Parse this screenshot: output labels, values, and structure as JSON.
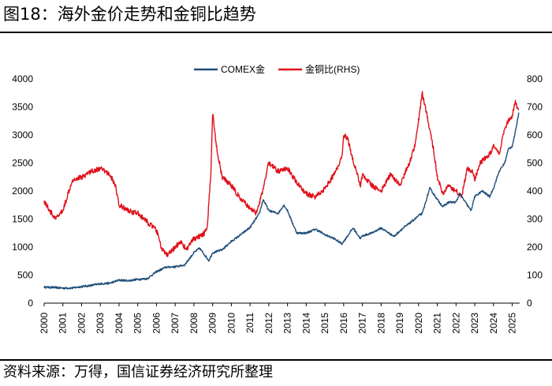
{
  "figure": {
    "title": "图18：海外金价走势和金铜比趋势",
    "source": "资料来源：万得，国信证券经济研究所整理"
  },
  "colors": {
    "gold": "#1f4e79",
    "ratio": "#e0101a"
  },
  "chart_data": {
    "type": "line",
    "legend_placement": "top-center",
    "grid": false,
    "x_ticks": [
      "2000",
      "2001",
      "2002",
      "2003",
      "2004",
      "2005",
      "2006",
      "2007",
      "2008",
      "2009",
      "2010",
      "2011",
      "2012",
      "2013",
      "2014",
      "2015",
      "2016",
      "2017",
      "2018",
      "2019",
      "2020",
      "2021",
      "2022",
      "2023",
      "2024",
      "2025"
    ],
    "y_left": {
      "min": 0,
      "max": 4000,
      "ticks": [
        "0",
        "500",
        "1000",
        "1500",
        "2000",
        "2500",
        "3000",
        "3500",
        "4000"
      ]
    },
    "y_right": {
      "min": 0,
      "max": 800,
      "ticks": [
        "0",
        "100",
        "200",
        "300",
        "400",
        "500",
        "600",
        "700",
        "800"
      ]
    },
    "series": [
      {
        "name": "COMEX金",
        "axis": "left",
        "color": "#1f4e79",
        "points": [
          [
            2000.0,
            285
          ],
          [
            2000.5,
            280
          ],
          [
            2001.0,
            268
          ],
          [
            2001.5,
            270
          ],
          [
            2002.0,
            295
          ],
          [
            2002.5,
            315
          ],
          [
            2003.0,
            345
          ],
          [
            2003.5,
            355
          ],
          [
            2004.0,
            410
          ],
          [
            2004.5,
            400
          ],
          [
            2005.0,
            425
          ],
          [
            2005.5,
            435
          ],
          [
            2006.0,
            560
          ],
          [
            2006.5,
            640
          ],
          [
            2007.0,
            650
          ],
          [
            2007.5,
            680
          ],
          [
            2008.0,
            900
          ],
          [
            2008.3,
            980
          ],
          [
            2008.8,
            760
          ],
          [
            2009.0,
            900
          ],
          [
            2009.5,
            950
          ],
          [
            2010.0,
            1100
          ],
          [
            2010.5,
            1220
          ],
          [
            2011.0,
            1350
          ],
          [
            2011.5,
            1600
          ],
          [
            2011.7,
            1850
          ],
          [
            2012.0,
            1650
          ],
          [
            2012.5,
            1600
          ],
          [
            2012.8,
            1750
          ],
          [
            2013.0,
            1650
          ],
          [
            2013.3,
            1400
          ],
          [
            2013.5,
            1250
          ],
          [
            2014.0,
            1250
          ],
          [
            2014.5,
            1320
          ],
          [
            2015.0,
            1220
          ],
          [
            2015.5,
            1150
          ],
          [
            2015.9,
            1060
          ],
          [
            2016.0,
            1100
          ],
          [
            2016.5,
            1340
          ],
          [
            2016.9,
            1150
          ],
          [
            2017.0,
            1200
          ],
          [
            2017.5,
            1250
          ],
          [
            2018.0,
            1340
          ],
          [
            2018.7,
            1190
          ],
          [
            2019.0,
            1290
          ],
          [
            2019.5,
            1420
          ],
          [
            2019.8,
            1500
          ],
          [
            2020.0,
            1560
          ],
          [
            2020.2,
            1600
          ],
          [
            2020.6,
            2050
          ],
          [
            2021.0,
            1850
          ],
          [
            2021.3,
            1720
          ],
          [
            2021.6,
            1800
          ],
          [
            2022.0,
            1800
          ],
          [
            2022.2,
            1950
          ],
          [
            2022.8,
            1650
          ],
          [
            2023.0,
            1900
          ],
          [
            2023.4,
            2000
          ],
          [
            2023.8,
            1900
          ],
          [
            2024.0,
            2050
          ],
          [
            2024.3,
            2350
          ],
          [
            2024.6,
            2500
          ],
          [
            2024.8,
            2750
          ],
          [
            2025.0,
            2800
          ],
          [
            2025.2,
            3100
          ],
          [
            2025.35,
            3400
          ]
        ]
      },
      {
        "name": "金铜比(RHS)",
        "axis": "right",
        "color": "#e0101a",
        "points": [
          [
            2000.0,
            365
          ],
          [
            2000.3,
            330
          ],
          [
            2000.6,
            300
          ],
          [
            2001.0,
            330
          ],
          [
            2001.5,
            440
          ],
          [
            2002.0,
            450
          ],
          [
            2002.5,
            470
          ],
          [
            2003.0,
            480
          ],
          [
            2003.5,
            460
          ],
          [
            2003.8,
            420
          ],
          [
            2004.0,
            350
          ],
          [
            2004.5,
            330
          ],
          [
            2005.0,
            320
          ],
          [
            2005.5,
            290
          ],
          [
            2006.0,
            260
          ],
          [
            2006.3,
            190
          ],
          [
            2006.6,
            170
          ],
          [
            2007.0,
            200
          ],
          [
            2007.3,
            220
          ],
          [
            2007.6,
            190
          ],
          [
            2008.0,
            230
          ],
          [
            2008.4,
            240
          ],
          [
            2008.7,
            260
          ],
          [
            2008.9,
            460
          ],
          [
            2009.0,
            680
          ],
          [
            2009.2,
            560
          ],
          [
            2009.5,
            450
          ],
          [
            2010.0,
            420
          ],
          [
            2010.5,
            370
          ],
          [
            2011.0,
            340
          ],
          [
            2011.3,
            320
          ],
          [
            2011.6,
            380
          ],
          [
            2012.0,
            500
          ],
          [
            2012.5,
            470
          ],
          [
            2013.0,
            480
          ],
          [
            2013.5,
            430
          ],
          [
            2014.0,
            390
          ],
          [
            2014.5,
            380
          ],
          [
            2015.0,
            410
          ],
          [
            2015.5,
            460
          ],
          [
            2015.9,
            520
          ],
          [
            2016.0,
            600
          ],
          [
            2016.2,
            590
          ],
          [
            2016.5,
            510
          ],
          [
            2016.9,
            420
          ],
          [
            2017.0,
            460
          ],
          [
            2017.5,
            420
          ],
          [
            2018.0,
            400
          ],
          [
            2018.5,
            460
          ],
          [
            2019.0,
            420
          ],
          [
            2019.5,
            500
          ],
          [
            2019.8,
            560
          ],
          [
            2020.0,
            650
          ],
          [
            2020.2,
            750
          ],
          [
            2020.5,
            650
          ],
          [
            2020.8,
            550
          ],
          [
            2021.0,
            450
          ],
          [
            2021.3,
            390
          ],
          [
            2021.6,
            420
          ],
          [
            2022.0,
            400
          ],
          [
            2022.3,
            380
          ],
          [
            2022.6,
            480
          ],
          [
            2022.9,
            470
          ],
          [
            2023.0,
            440
          ],
          [
            2023.3,
            500
          ],
          [
            2023.6,
            520
          ],
          [
            2023.9,
            540
          ],
          [
            2024.0,
            560
          ],
          [
            2024.3,
            530
          ],
          [
            2024.6,
            620
          ],
          [
            2024.8,
            650
          ],
          [
            2025.0,
            660
          ],
          [
            2025.15,
            720
          ],
          [
            2025.35,
            690
          ]
        ]
      }
    ]
  }
}
